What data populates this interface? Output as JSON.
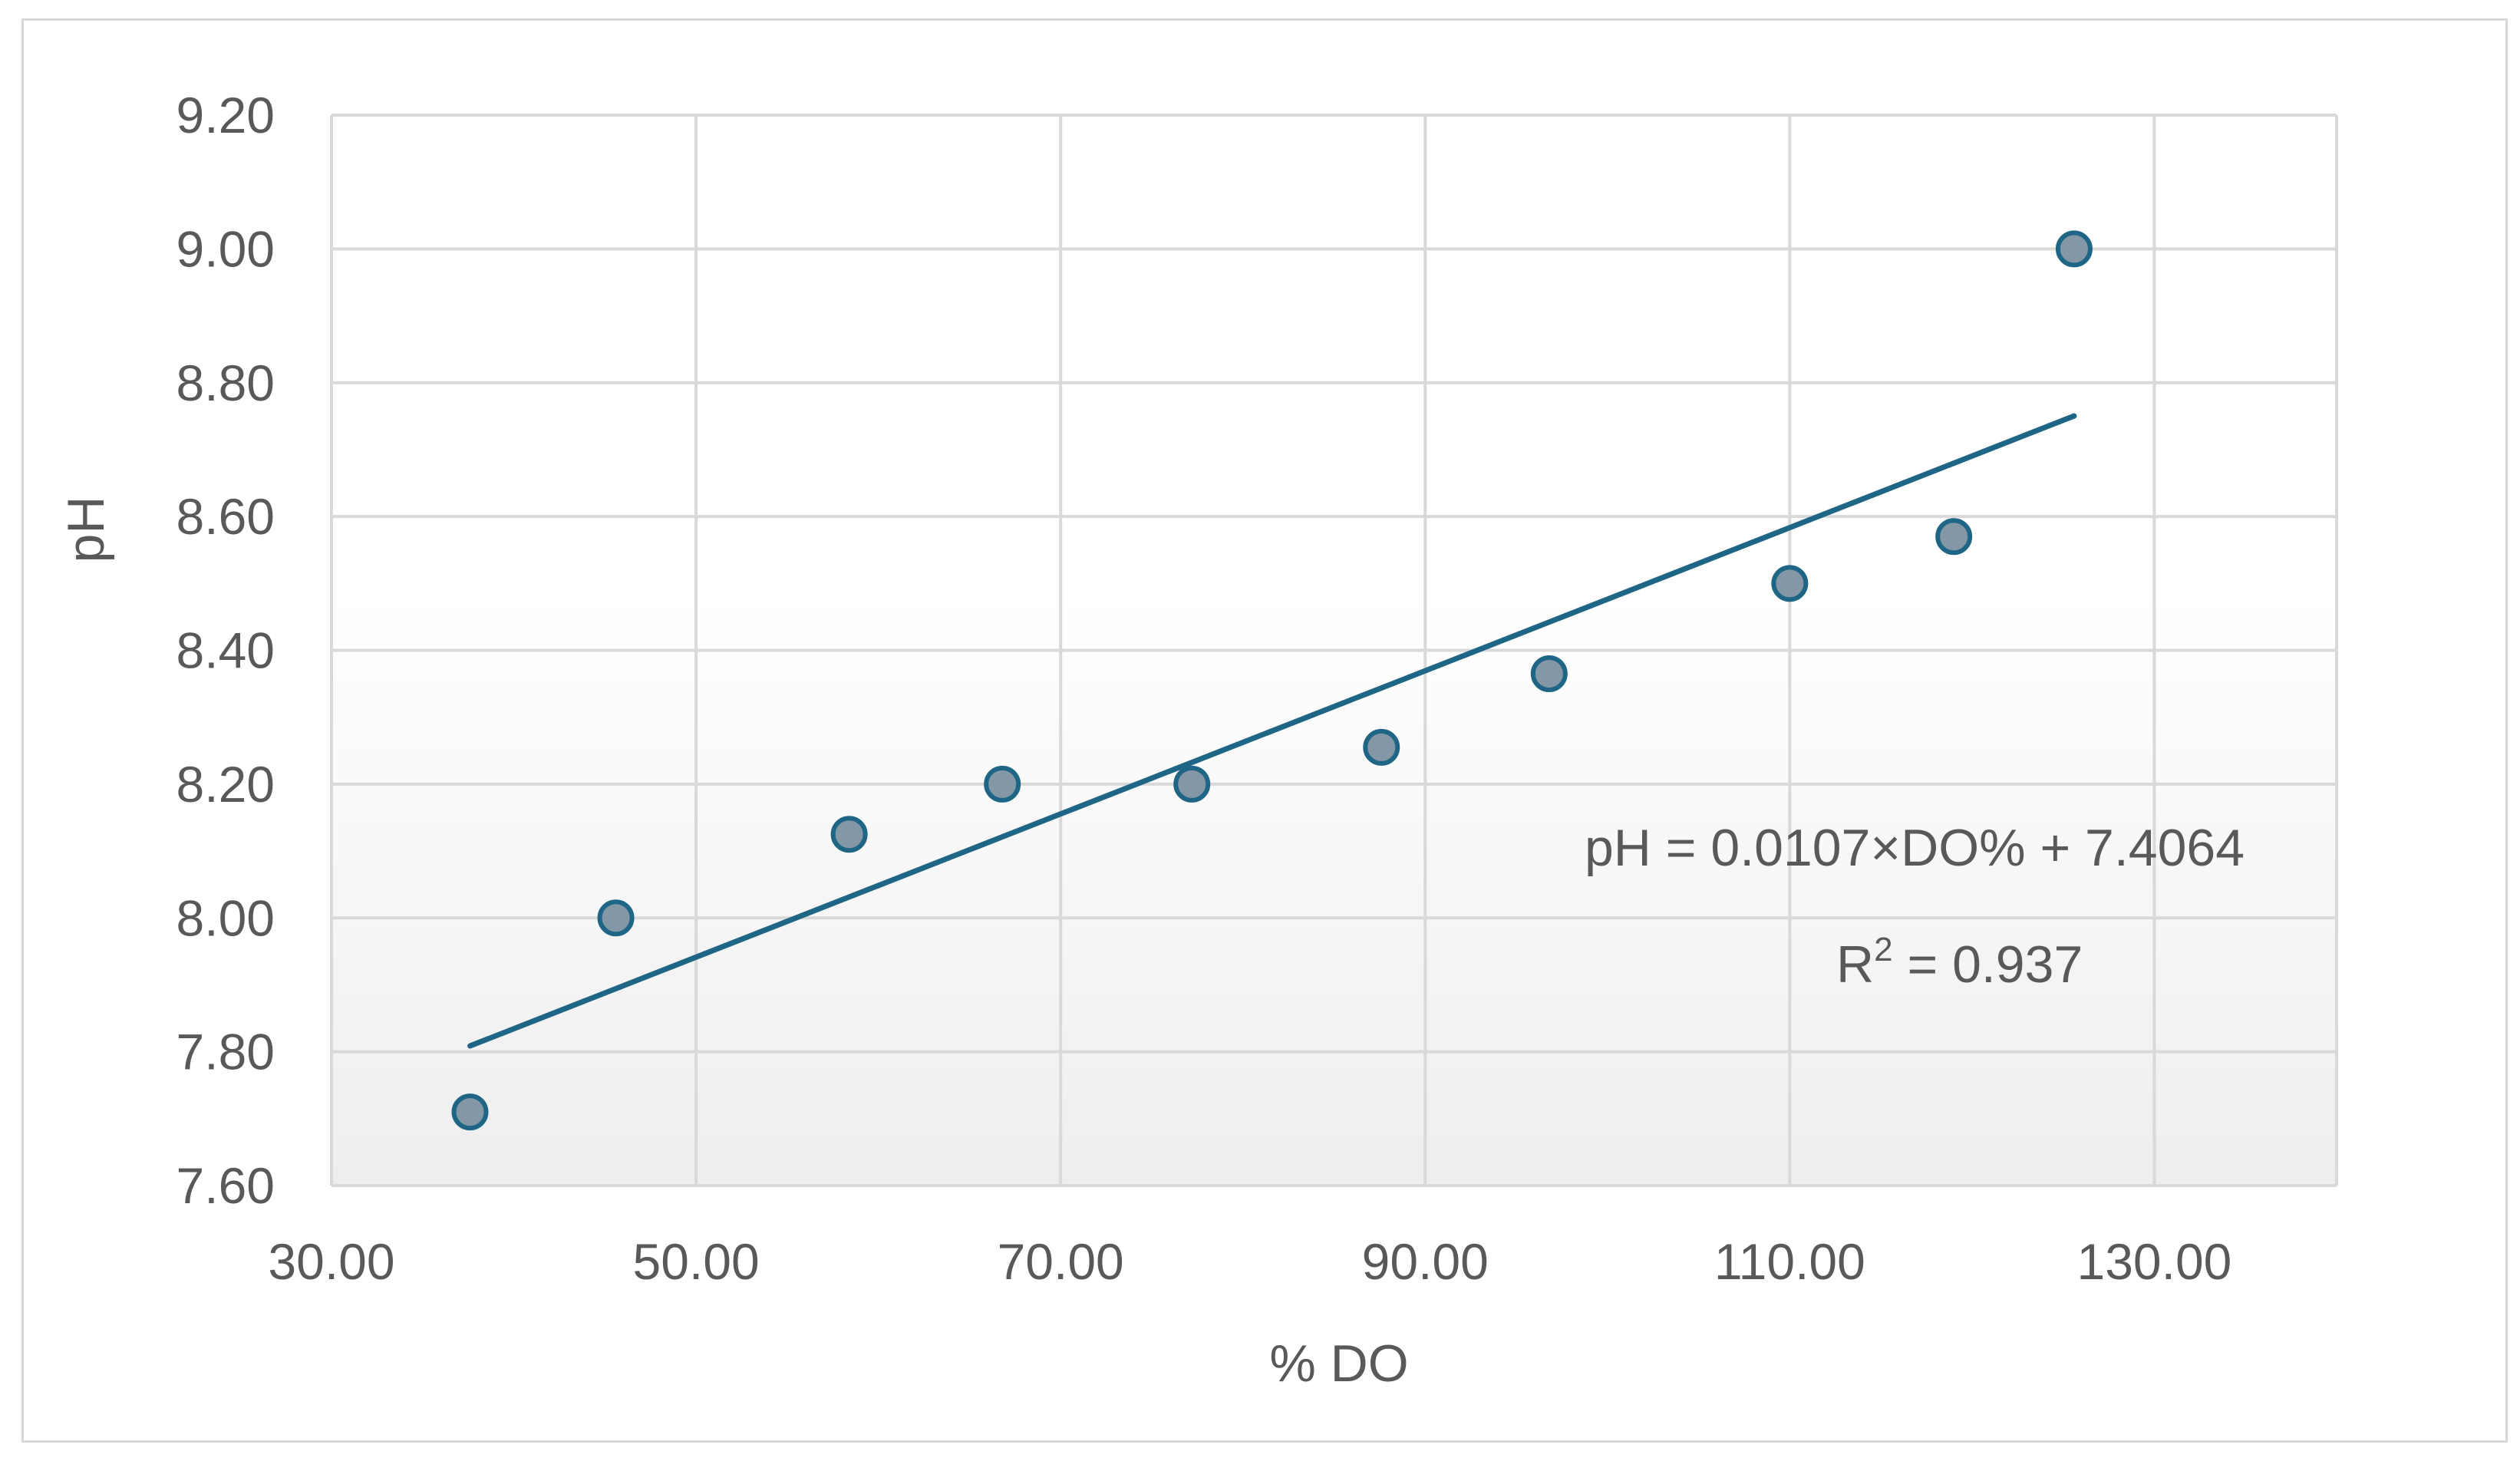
{
  "chart_data": {
    "type": "scatter",
    "title": "",
    "xlabel": "% DO",
    "ylabel": "pH",
    "xlim": [
      30,
      140
    ],
    "ylim": [
      7.6,
      9.2
    ],
    "x_ticks": [
      30,
      50,
      70,
      90,
      110,
      130
    ],
    "x_tick_labels": [
      "30.00",
      "50.00",
      "70.00",
      "90.00",
      "110.00",
      "130.00"
    ],
    "y_ticks": [
      7.6,
      7.8,
      8.0,
      8.2,
      8.4,
      8.6,
      8.8,
      9.0,
      9.2
    ],
    "y_tick_labels": [
      "7.60",
      "7.80",
      "8.00",
      "8.20",
      "8.40",
      "8.60",
      "8.80",
      "9.00",
      "9.20"
    ],
    "grid": true,
    "legend": "none",
    "series": [
      {
        "x": [
          37.6,
          45.6,
          58.4,
          66.8,
          77.2,
          87.6,
          96.8,
          110.0,
          119.0,
          125.6
        ],
        "y": [
          7.71,
          8.0,
          8.125,
          8.2,
          8.2,
          8.255,
          8.365,
          8.5,
          8.57,
          9.0
        ],
        "marker_color": "#8497a6",
        "marker_edge_color": "#1f6686"
      }
    ],
    "trendline": {
      "type": "linear",
      "slope": 0.0107,
      "intercept": 7.4064,
      "x_range": [
        37.6,
        125.6
      ],
      "color": "#1f6686"
    },
    "annotations": {
      "equation": "pH = 0.0107×DO% + 7.4064",
      "r2_prefix": "R",
      "r2_superscript": "2",
      "r2_value": " = 0.937"
    },
    "colors": {
      "gridline": "#d9d9d9",
      "text": "#595959",
      "plot_gradient_bottom": "#eeeeee",
      "border": "#d6d6d6"
    }
  }
}
